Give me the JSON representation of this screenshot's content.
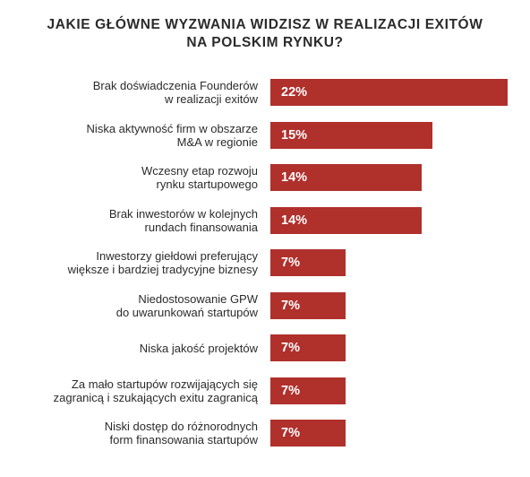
{
  "chart_data": {
    "type": "bar",
    "orientation": "horizontal",
    "title": [
      "JAKIE GŁÓWNE WYZWANIA WIDZISZ W REALIZACJI EXITÓW",
      "NA POLSKIM RYNKU?"
    ],
    "categories": [
      [
        "Brak doświadczenia Founderów",
        "w realizacji exitów"
      ],
      [
        "Niska aktywność firm w obszarze",
        "M&A w regionie"
      ],
      [
        "Wczesny etap rozwoju",
        "rynku startupowego"
      ],
      [
        "Brak inwestorów w kolejnych",
        "rundach finansowania"
      ],
      [
        "Inwestorzy giełdowi preferujący",
        "większe i bardziej tradycyjne biznesy"
      ],
      [
        "Niedostosowanie GPW",
        "do uwarunkowań startupów"
      ],
      [
        "Niska jakość projektów"
      ],
      [
        "Za mało startupów rozwijających się",
        "zagranicą i szukających exitu zagranicą"
      ],
      [
        "Niski dostęp do różnorodnych",
        "form finansowania startupów"
      ]
    ],
    "values": [
      22,
      15,
      14,
      14,
      7,
      7,
      7,
      7,
      7
    ],
    "value_labels": [
      "22%",
      "15%",
      "14%",
      "14%",
      "7%",
      "7%",
      "7%",
      "7%",
      "7%"
    ],
    "xlim": [
      0,
      22
    ],
    "bar_color": "#b0302c",
    "grid": false,
    "legend": "none"
  }
}
